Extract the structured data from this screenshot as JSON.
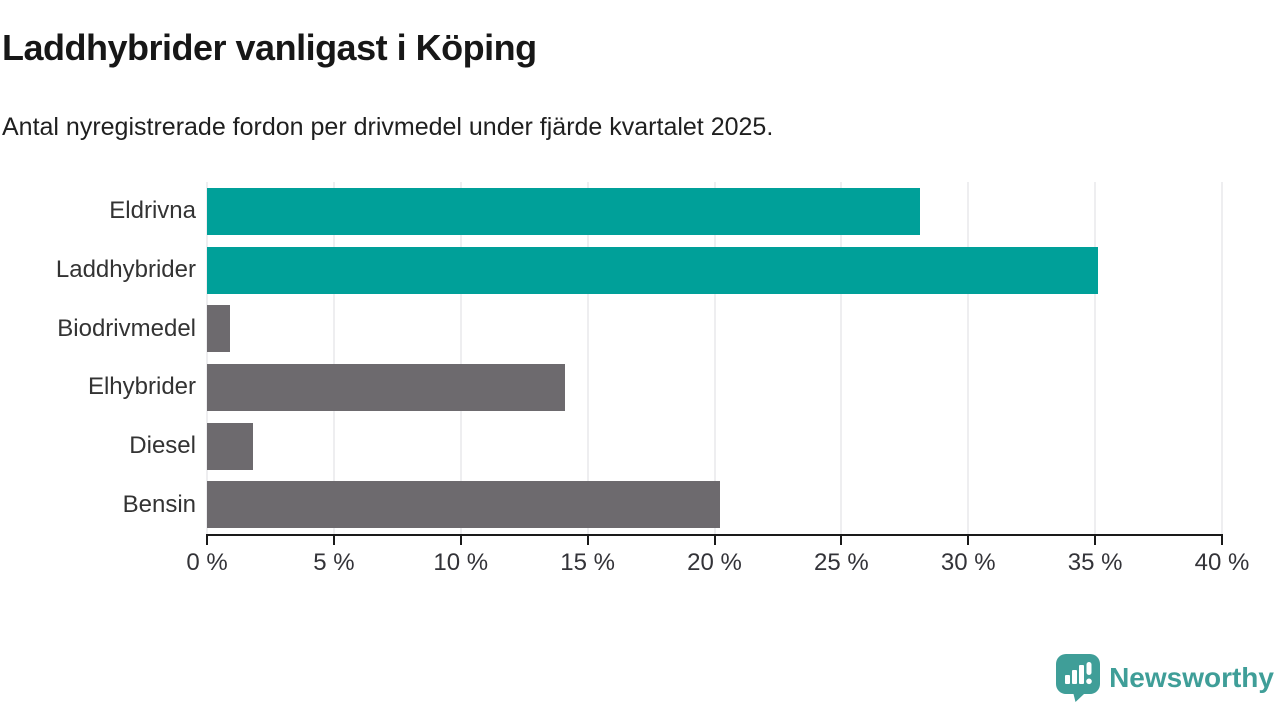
{
  "header": {
    "title": "Laddhybrider vanligast i Köping",
    "subtitle": "Antal nyregistrerade fordon per drivmedel under fjärde kvartalet 2025."
  },
  "chart_data": {
    "type": "bar",
    "orientation": "horizontal",
    "title": "Laddhybrider vanligast i Köping",
    "subtitle": "Antal nyregistrerade fordon per drivmedel under fjärde kvartalet 2025.",
    "categories": [
      "Eldrivna",
      "Laddhybrider",
      "Biodrivmedel",
      "Elhybrider",
      "Diesel",
      "Bensin"
    ],
    "values": [
      28.1,
      35.1,
      0.9,
      14.1,
      1.8,
      20.2
    ],
    "unit": "%",
    "xlim": [
      0,
      40
    ],
    "x_ticks": [
      0,
      5,
      10,
      15,
      20,
      25,
      30,
      35,
      40
    ],
    "x_tick_labels": [
      "0 %",
      "5 %",
      "10 %",
      "15 %",
      "20 %",
      "25 %",
      "30 %",
      "35 %",
      "40 %"
    ],
    "bar_colors": [
      "#00a099",
      "#00a099",
      "#6d6a6e",
      "#6d6a6e",
      "#6d6a6e",
      "#6d6a6e"
    ],
    "highlight_color": "#00a099",
    "default_color": "#6d6a6e",
    "grid": true,
    "legend": "none"
  },
  "colors": {
    "accent_teal": "#00a099",
    "neutral_gray": "#6d6a6e",
    "gridline": "#dddde0",
    "axis": "#1a1a1a",
    "brand_teal": "#3f9e98"
  },
  "footer": {
    "brand": "Newsworthy",
    "logo_icon": "newsworthy-speech-bubble-chart-icon"
  }
}
